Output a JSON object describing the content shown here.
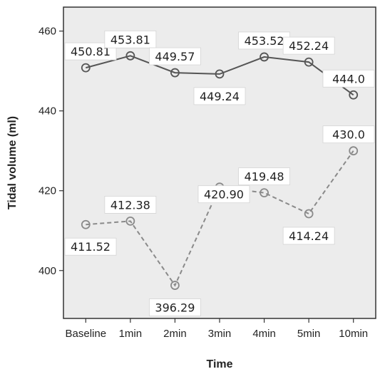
{
  "chart_data": {
    "type": "line",
    "title": "",
    "xlabel": "Time",
    "ylabel": "Tidal volume (ml)",
    "categories": [
      "Baseline",
      "1min",
      "2min",
      "3min",
      "4min",
      "5min",
      "10min"
    ],
    "ylim": [
      388,
      466
    ],
    "yticks": [
      400,
      420,
      440,
      460
    ],
    "grid": false,
    "series": [
      {
        "values": [
          450.81,
          453.81,
          449.57,
          449.24,
          453.52,
          452.24,
          444.0
        ],
        "labels": [
          "450.81",
          "453.81",
          "449.57",
          "449.24",
          "453.52",
          "452.24",
          "444.0"
        ],
        "label_positions": [
          "above",
          "above",
          "above",
          "below",
          "above",
          "above",
          "above"
        ],
        "line_style": "solid",
        "color": "#555555"
      },
      {
        "values": [
          411.52,
          412.38,
          396.29,
          420.9,
          419.48,
          414.24,
          430.0
        ],
        "labels": [
          "411.52",
          "412.38",
          "396.29",
          "420.90",
          "419.48",
          "414.24",
          "430.0"
        ],
        "label_positions": [
          "below",
          "above",
          "below",
          "right",
          "above",
          "below",
          "above"
        ],
        "line_style": "dashed",
        "color": "#8a8a8a"
      }
    ],
    "plot_background": "#ececec",
    "label_box_color": "#ffffff"
  }
}
